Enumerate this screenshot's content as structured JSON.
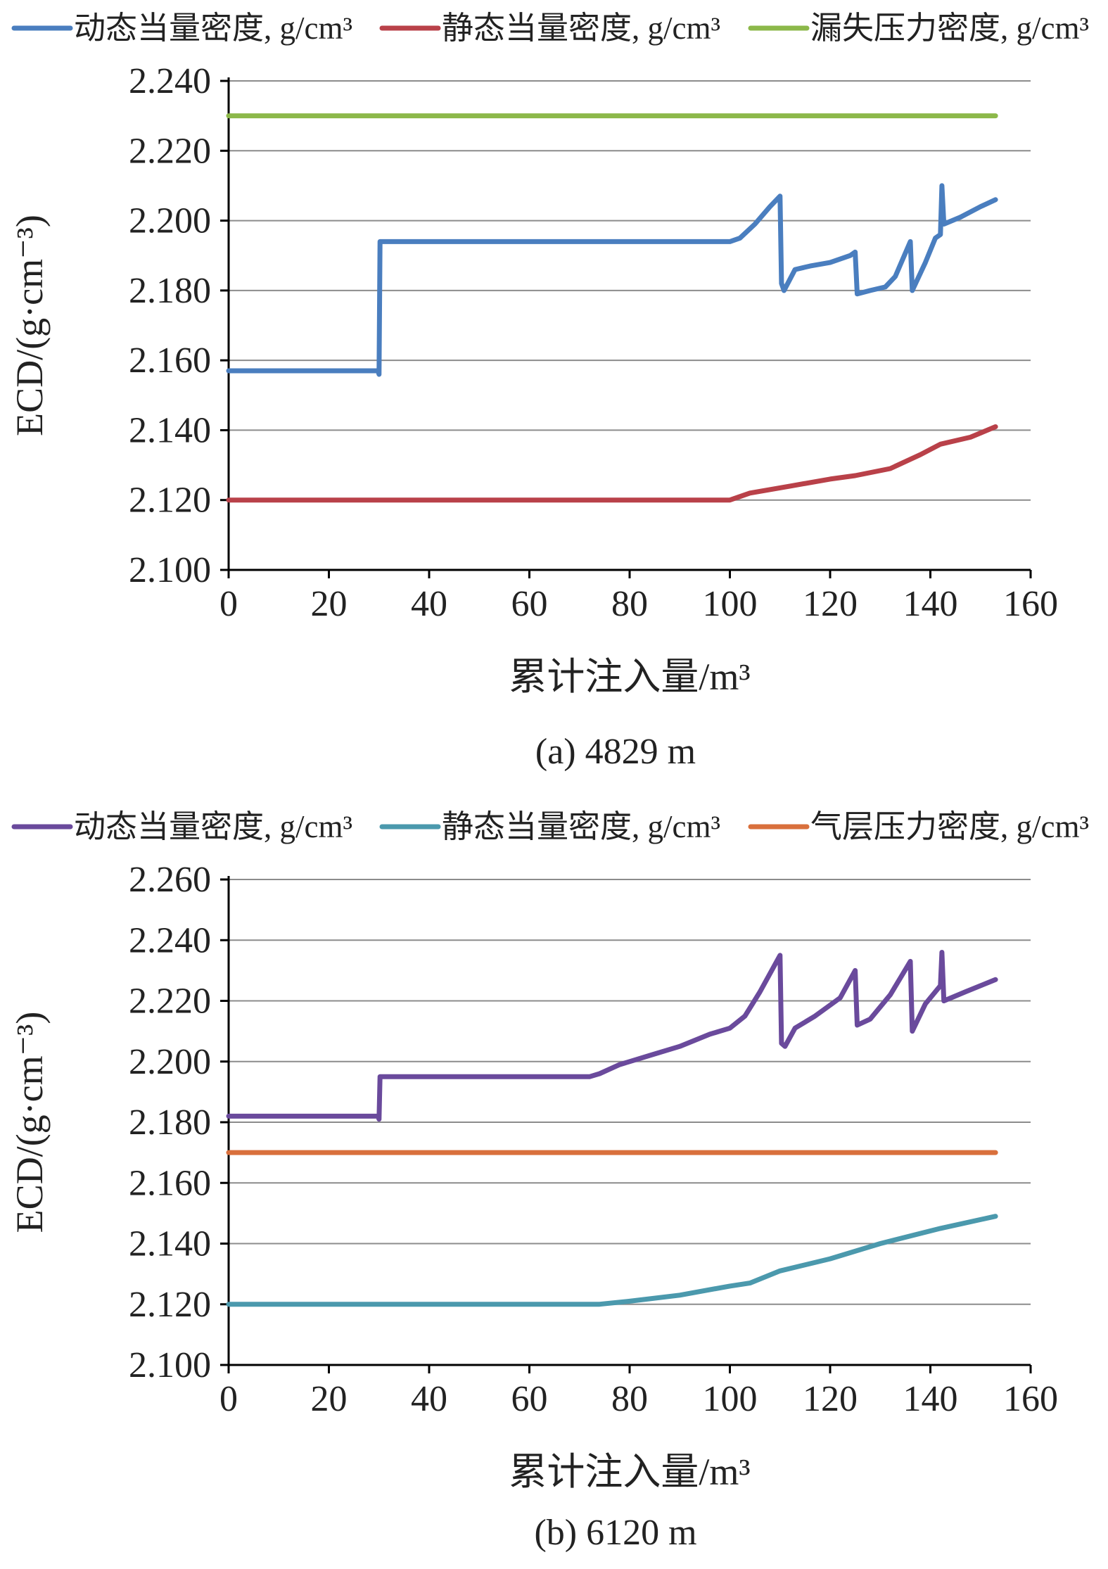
{
  "chart_data": [
    {
      "type": "line",
      "caption": "(a) 4829 m",
      "xlabel": "累计注入量/m³",
      "ylabel": "ECD/(g·cm⁻³)",
      "xlim": [
        0,
        160
      ],
      "ylim": [
        2.1,
        2.24
      ],
      "xticks": [
        "0",
        "20",
        "40",
        "60",
        "80",
        "100",
        "120",
        "140",
        "160"
      ],
      "yticks": [
        "2.100",
        "2.120",
        "2.140",
        "2.160",
        "2.180",
        "2.200",
        "2.220",
        "2.240"
      ],
      "grid": "horizontal",
      "legend_position": "top",
      "series": [
        {
          "name": "动态当量密度, g/cm³",
          "color": "#4a7ebf",
          "points": [
            [
              0,
              2.157
            ],
            [
              29.8,
              2.157
            ],
            [
              30,
              2.156
            ],
            [
              30.2,
              2.194
            ],
            [
              100,
              2.194
            ],
            [
              102,
              2.195
            ],
            [
              105,
              2.199
            ],
            [
              108,
              2.204
            ],
            [
              110,
              2.207
            ],
            [
              110.3,
              2.182
            ],
            [
              110.8,
              2.18
            ],
            [
              113,
              2.186
            ],
            [
              116,
              2.187
            ],
            [
              120,
              2.188
            ],
            [
              124,
              2.19
            ],
            [
              125,
              2.191
            ],
            [
              125.4,
              2.179
            ],
            [
              128,
              2.18
            ],
            [
              131,
              2.181
            ],
            [
              133,
              2.184
            ],
            [
              136,
              2.194
            ],
            [
              136.4,
              2.18
            ],
            [
              139,
              2.188
            ],
            [
              141,
              2.195
            ],
            [
              142,
              2.196
            ],
            [
              142.3,
              2.21
            ],
            [
              142.7,
              2.199
            ],
            [
              146,
              2.201
            ],
            [
              150,
              2.204
            ],
            [
              153,
              2.206
            ]
          ]
        },
        {
          "name": "静态当量密度, g/cm³",
          "color": "#b94149",
          "points": [
            [
              0,
              2.12
            ],
            [
              100,
              2.12
            ],
            [
              104,
              2.122
            ],
            [
              112,
              2.124
            ],
            [
              120,
              2.126
            ],
            [
              125,
              2.127
            ],
            [
              132,
              2.129
            ],
            [
              138,
              2.133
            ],
            [
              142,
              2.136
            ],
            [
              148,
              2.138
            ],
            [
              153,
              2.141
            ]
          ]
        },
        {
          "name": "漏失压力密度, g/cm³",
          "color": "#8cb84a",
          "points": [
            [
              0,
              2.23
            ],
            [
              153,
              2.23
            ]
          ]
        }
      ]
    },
    {
      "type": "line",
      "caption": "(b) 6120 m",
      "xlabel": "累计注入量/m³",
      "ylabel": "ECD/(g·cm⁻³)",
      "xlim": [
        0,
        160
      ],
      "ylim": [
        2.1,
        2.26
      ],
      "xticks": [
        "0",
        "20",
        "40",
        "60",
        "80",
        "100",
        "120",
        "140",
        "160"
      ],
      "yticks": [
        "2.100",
        "2.120",
        "2.140",
        "2.160",
        "2.180",
        "2.200",
        "2.220",
        "2.240",
        "2.260"
      ],
      "grid": "horizontal",
      "legend_position": "top",
      "series": [
        {
          "name": "动态当量密度, g/cm³",
          "color": "#6a4a9c",
          "points": [
            [
              0,
              2.182
            ],
            [
              29.8,
              2.182
            ],
            [
              30,
              2.181
            ],
            [
              30.2,
              2.195
            ],
            [
              72,
              2.195
            ],
            [
              74,
              2.196
            ],
            [
              78,
              2.199
            ],
            [
              84,
              2.202
            ],
            [
              90,
              2.205
            ],
            [
              96,
              2.209
            ],
            [
              100,
              2.211
            ],
            [
              103,
              2.215
            ],
            [
              106,
              2.223
            ],
            [
              110,
              2.235
            ],
            [
              110.3,
              2.206
            ],
            [
              111,
              2.205
            ],
            [
              113,
              2.211
            ],
            [
              117,
              2.215
            ],
            [
              122,
              2.221
            ],
            [
              125,
              2.23
            ],
            [
              125.4,
              2.212
            ],
            [
              128,
              2.214
            ],
            [
              132,
              2.222
            ],
            [
              136,
              2.233
            ],
            [
              136.4,
              2.21
            ],
            [
              139,
              2.219
            ],
            [
              142,
              2.225
            ],
            [
              142.3,
              2.236
            ],
            [
              142.7,
              2.22
            ],
            [
              147,
              2.223
            ],
            [
              153,
              2.227
            ]
          ]
        },
        {
          "name": "静态当量密度, g/cm³",
          "color": "#4b99ad",
          "points": [
            [
              0,
              2.12
            ],
            [
              74,
              2.12
            ],
            [
              80,
              2.121
            ],
            [
              90,
              2.123
            ],
            [
              100,
              2.126
            ],
            [
              104,
              2.127
            ],
            [
              110,
              2.131
            ],
            [
              120,
              2.135
            ],
            [
              130,
              2.14
            ],
            [
              142,
              2.145
            ],
            [
              153,
              2.149
            ]
          ]
        },
        {
          "name": "气层压力密度, g/cm³",
          "color": "#d9703c",
          "points": [
            [
              0,
              2.17
            ],
            [
              153,
              2.17
            ]
          ]
        }
      ]
    }
  ]
}
